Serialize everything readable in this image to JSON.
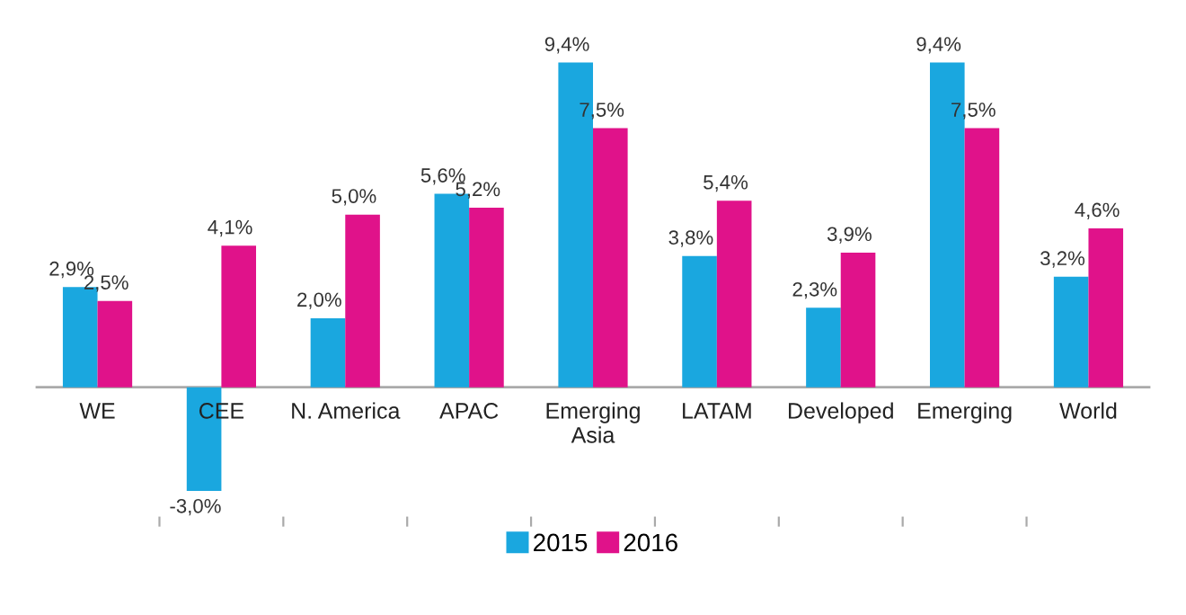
{
  "chart_data": {
    "type": "bar",
    "categories": [
      "WE",
      "CEE",
      "N. America",
      "APAC",
      "Emerging\nAsia",
      "LATAM",
      "Developed",
      "Emerging",
      "World"
    ],
    "series": [
      {
        "name": "2015",
        "color": "#1aa7df",
        "values": [
          2.9,
          -3.0,
          2.0,
          5.6,
          9.4,
          3.8,
          2.3,
          9.4,
          3.2
        ],
        "value_labels": [
          "2,9%",
          "-3,0%",
          "2,0%",
          "5,6%",
          "9,4%",
          "3,8%",
          "2,3%",
          "9,4%",
          "3,2%"
        ]
      },
      {
        "name": "2016",
        "color": "#e0128a",
        "values": [
          2.5,
          4.1,
          5.0,
          5.2,
          7.5,
          5.4,
          3.9,
          7.5,
          4.6
        ],
        "value_labels": [
          "2,5%",
          "4,1%",
          "5,0%",
          "5,2%",
          "7,5%",
          "5,4%",
          "3,9%",
          "7,5%",
          "4,6%"
        ]
      }
    ],
    "legend": "bottom",
    "grid": false
  }
}
